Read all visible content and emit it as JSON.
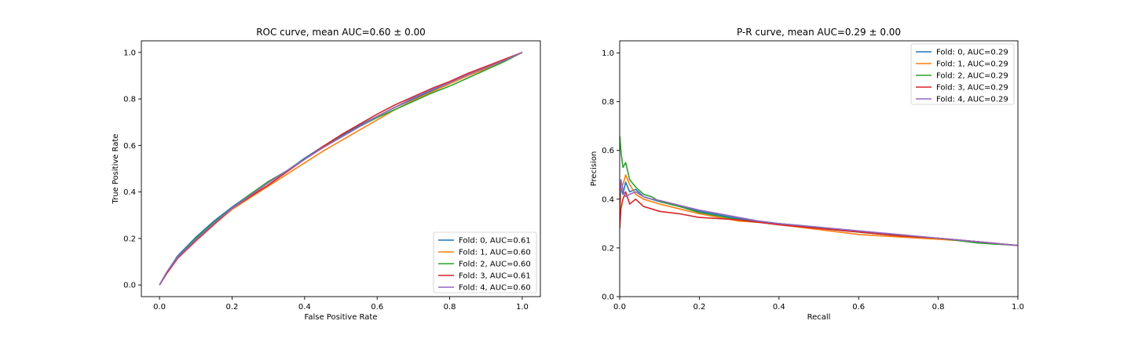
{
  "chart_data": [
    {
      "type": "line",
      "title": "ROC curve, mean AUC=0.60 ± 0.00",
      "xlabel": "False Positive Rate",
      "ylabel": "True Positive Rate",
      "xlim": [
        -0.05,
        1.05
      ],
      "ylim": [
        -0.05,
        1.05
      ],
      "xticks": [
        0.0,
        0.2,
        0.4,
        0.6,
        0.8,
        1.0
      ],
      "yticks": [
        0.0,
        0.2,
        0.4,
        0.6,
        0.8,
        1.0
      ],
      "tick_labels": [
        "0.0",
        "0.2",
        "0.4",
        "0.6",
        "0.8",
        "1.0"
      ],
      "grid": false,
      "legend_position": "lower-right",
      "series": [
        {
          "name": "Fold: 0, AUC=0.61",
          "color": "#1f77b4",
          "x": [
            0,
            0.02,
            0.05,
            0.1,
            0.15,
            0.2,
            0.25,
            0.3,
            0.35,
            0.4,
            0.45,
            0.5,
            0.55,
            0.6,
            0.65,
            0.7,
            0.75,
            0.8,
            0.85,
            0.9,
            0.95,
            1.0
          ],
          "y": [
            0,
            0.055,
            0.125,
            0.205,
            0.275,
            0.335,
            0.39,
            0.44,
            0.49,
            0.545,
            0.595,
            0.64,
            0.685,
            0.725,
            0.765,
            0.8,
            0.835,
            0.87,
            0.9,
            0.935,
            0.965,
            1.0
          ]
        },
        {
          "name": "Fold: 1, AUC=0.60",
          "color": "#ff7f0e",
          "x": [
            0,
            0.02,
            0.05,
            0.1,
            0.15,
            0.2,
            0.25,
            0.3,
            0.35,
            0.4,
            0.45,
            0.5,
            0.55,
            0.6,
            0.65,
            0.7,
            0.75,
            0.8,
            0.85,
            0.9,
            0.95,
            1.0
          ],
          "y": [
            0,
            0.05,
            0.115,
            0.19,
            0.26,
            0.325,
            0.375,
            0.425,
            0.475,
            0.525,
            0.575,
            0.62,
            0.665,
            0.71,
            0.755,
            0.795,
            0.83,
            0.865,
            0.9,
            0.93,
            0.965,
            1.0
          ]
        },
        {
          "name": "Fold: 2, AUC=0.60",
          "color": "#2ca02c",
          "x": [
            0,
            0.02,
            0.05,
            0.1,
            0.15,
            0.2,
            0.25,
            0.3,
            0.35,
            0.4,
            0.45,
            0.5,
            0.55,
            0.6,
            0.65,
            0.7,
            0.75,
            0.8,
            0.85,
            0.9,
            0.95,
            1.0
          ],
          "y": [
            0,
            0.055,
            0.12,
            0.2,
            0.27,
            0.33,
            0.39,
            0.445,
            0.49,
            0.54,
            0.59,
            0.635,
            0.68,
            0.72,
            0.755,
            0.79,
            0.825,
            0.855,
            0.89,
            0.925,
            0.96,
            1.0
          ]
        },
        {
          "name": "Fold: 3, AUC=0.61",
          "color": "#d62728",
          "x": [
            0,
            0.02,
            0.05,
            0.1,
            0.15,
            0.2,
            0.25,
            0.3,
            0.35,
            0.4,
            0.45,
            0.5,
            0.55,
            0.6,
            0.65,
            0.7,
            0.75,
            0.8,
            0.85,
            0.9,
            0.95,
            1.0
          ],
          "y": [
            0,
            0.05,
            0.115,
            0.19,
            0.26,
            0.33,
            0.38,
            0.43,
            0.485,
            0.54,
            0.595,
            0.645,
            0.69,
            0.735,
            0.775,
            0.81,
            0.845,
            0.875,
            0.91,
            0.94,
            0.97,
            1.0
          ]
        },
        {
          "name": "Fold: 4, AUC=0.60",
          "color": "#9467bd",
          "x": [
            0,
            0.02,
            0.05,
            0.1,
            0.15,
            0.2,
            0.25,
            0.3,
            0.35,
            0.4,
            0.45,
            0.5,
            0.55,
            0.6,
            0.65,
            0.7,
            0.75,
            0.8,
            0.85,
            0.9,
            0.95,
            1.0
          ],
          "y": [
            0,
            0.055,
            0.12,
            0.195,
            0.265,
            0.33,
            0.385,
            0.44,
            0.49,
            0.54,
            0.59,
            0.635,
            0.68,
            0.725,
            0.765,
            0.805,
            0.84,
            0.87,
            0.905,
            0.935,
            0.965,
            1.0
          ]
        }
      ]
    },
    {
      "type": "line",
      "title": "P-R curve, mean AUC=0.29 ± 0.00",
      "xlabel": "Recall",
      "ylabel": "Precision",
      "xlim": [
        0.0,
        1.0
      ],
      "ylim": [
        0.0,
        1.05
      ],
      "xticks": [
        0.0,
        0.2,
        0.4,
        0.6,
        0.8,
        1.0
      ],
      "yticks": [
        0.0,
        0.2,
        0.4,
        0.6,
        0.8,
        1.0
      ],
      "tick_labels": [
        "0.0",
        "0.2",
        "0.4",
        "0.6",
        "0.8",
        "1.0"
      ],
      "grid": false,
      "legend_position": "upper-right",
      "series": [
        {
          "name": "Fold: 0, AUC=0.29",
          "color": "#1f77b4",
          "x": [
            0,
            0.003,
            0.008,
            0.015,
            0.025,
            0.04,
            0.06,
            0.08,
            0.1,
            0.15,
            0.2,
            0.25,
            0.3,
            0.35,
            0.4,
            0.5,
            0.6,
            0.7,
            0.8,
            0.9,
            1.0
          ],
          "y": [
            0.33,
            0.45,
            0.42,
            0.47,
            0.43,
            0.44,
            0.41,
            0.4,
            0.39,
            0.37,
            0.35,
            0.335,
            0.32,
            0.31,
            0.3,
            0.28,
            0.265,
            0.25,
            0.24,
            0.225,
            0.21
          ]
        },
        {
          "name": "Fold: 1, AUC=0.29",
          "color": "#ff7f0e",
          "x": [
            0,
            0.003,
            0.008,
            0.015,
            0.025,
            0.04,
            0.06,
            0.08,
            0.1,
            0.15,
            0.2,
            0.25,
            0.3,
            0.35,
            0.4,
            0.5,
            0.6,
            0.7,
            0.8,
            0.9,
            1.0
          ],
          "y": [
            0.3,
            0.44,
            0.46,
            0.5,
            0.46,
            0.42,
            0.4,
            0.39,
            0.38,
            0.36,
            0.34,
            0.325,
            0.31,
            0.305,
            0.295,
            0.275,
            0.255,
            0.245,
            0.235,
            0.225,
            0.21
          ]
        },
        {
          "name": "Fold: 2, AUC=0.29",
          "color": "#2ca02c",
          "x": [
            0,
            0.003,
            0.008,
            0.015,
            0.025,
            0.04,
            0.06,
            0.08,
            0.1,
            0.15,
            0.2,
            0.25,
            0.3,
            0.35,
            0.4,
            0.5,
            0.6,
            0.7,
            0.8,
            0.9,
            1.0
          ],
          "y": [
            0.66,
            0.6,
            0.53,
            0.55,
            0.48,
            0.45,
            0.42,
            0.41,
            0.39,
            0.37,
            0.345,
            0.33,
            0.315,
            0.305,
            0.3,
            0.285,
            0.265,
            0.25,
            0.24,
            0.22,
            0.21
          ]
        },
        {
          "name": "Fold: 3, AUC=0.29",
          "color": "#d62728",
          "x": [
            0,
            0.003,
            0.008,
            0.015,
            0.025,
            0.04,
            0.06,
            0.08,
            0.1,
            0.15,
            0.2,
            0.25,
            0.3,
            0.35,
            0.4,
            0.5,
            0.6,
            0.7,
            0.8,
            0.9,
            1.0
          ],
          "y": [
            0.28,
            0.36,
            0.4,
            0.43,
            0.38,
            0.4,
            0.37,
            0.36,
            0.35,
            0.34,
            0.325,
            0.32,
            0.315,
            0.305,
            0.295,
            0.28,
            0.265,
            0.25,
            0.24,
            0.225,
            0.21
          ]
        },
        {
          "name": "Fold: 4, AUC=0.29",
          "color": "#9467bd",
          "x": [
            0,
            0.003,
            0.008,
            0.015,
            0.025,
            0.04,
            0.06,
            0.08,
            0.1,
            0.15,
            0.2,
            0.25,
            0.3,
            0.35,
            0.4,
            0.5,
            0.6,
            0.7,
            0.8,
            0.9,
            1.0
          ],
          "y": [
            0.38,
            0.48,
            0.44,
            0.41,
            0.42,
            0.43,
            0.41,
            0.4,
            0.395,
            0.375,
            0.355,
            0.34,
            0.325,
            0.31,
            0.3,
            0.285,
            0.27,
            0.255,
            0.24,
            0.225,
            0.21
          ]
        }
      ]
    }
  ]
}
